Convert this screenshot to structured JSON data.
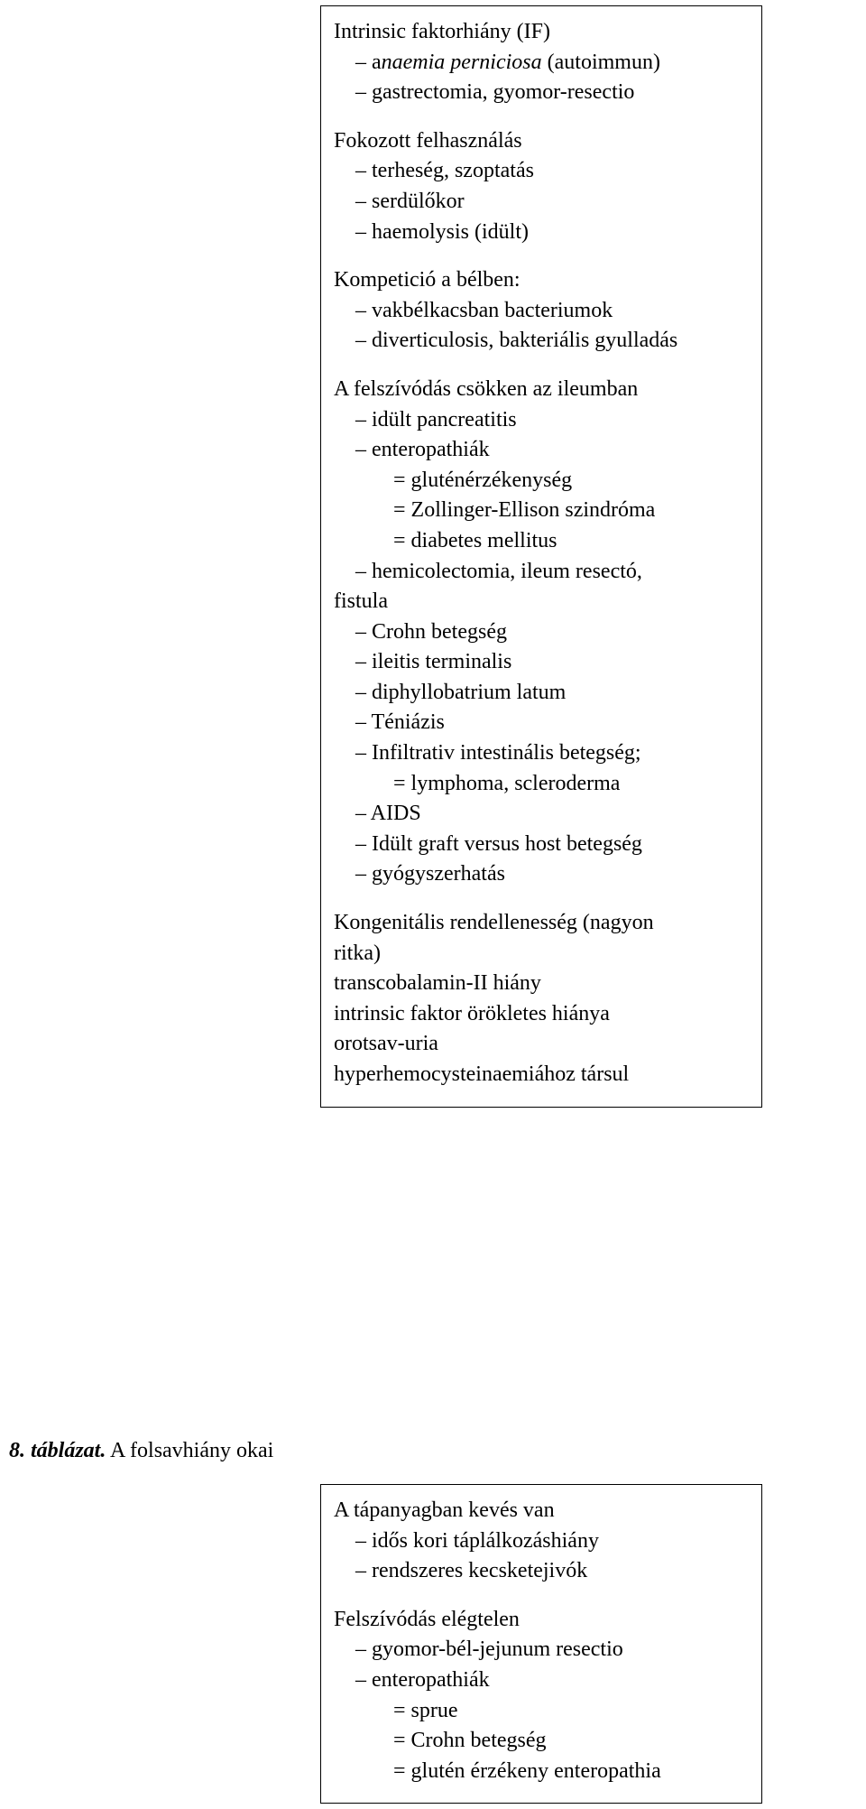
{
  "box1": {
    "s1": {
      "head": "Intrinsic faktorhiány (IF)",
      "items": [
        {
          "pre": "– a",
          "ital": "naemia perniciosa",
          "post": " (autoimmun)"
        },
        {
          "text": "– gastrectomia, gyomor-resectio"
        }
      ]
    },
    "s2": {
      "head": "Fokozott felhasználás",
      "items": [
        "– terheség, szoptatás",
        "– serdülőkor",
        "– haemolysis (idült)"
      ]
    },
    "s3": {
      "head": "Kompetició a bélben:",
      "items": [
        "– vakbélkacsban bacteriumok",
        "– diverticulosis, bakteriális gyulladás"
      ]
    },
    "s4": {
      "head": "A felszívódás csökken az ileumban",
      "items_a": [
        "– idült pancreatitis",
        "– enteropathiák"
      ],
      "eqs": [
        "= gluténérzékenység",
        "= Zollinger-Ellison szindróma",
        "= diabetes mellitus"
      ],
      "wrap1": "– hemicolectomia, ileum resectó,",
      "wrap1b": "fistula",
      "items_b": [
        "– Crohn betegség",
        "– ileitis terminalis",
        "– diphyllobatrium latum",
        "– Téniázis",
        "– Infiltrativ intestinális betegség;"
      ],
      "eq2": "= lymphoma, scleroderma",
      "items_c": [
        "– AIDS",
        "– Idült graft versus host betegség",
        "– gyógyszerhatás"
      ]
    },
    "s5": {
      "l1": "Kongenitális rendellenesség (nagyon",
      "l1b": "ritka)",
      "l2": "transcobalamin-II hiány",
      "l3": "intrinsic faktor örökletes hiánya",
      "l4": "orotsav-uria",
      "l5": "hyperhemocysteinaemiához társul"
    }
  },
  "caption": {
    "label": "8. táblázat.",
    "text": " A folsavhiány okai"
  },
  "box2": {
    "s1": {
      "head": "A tápanyagban kevés van",
      "items": [
        "– idős kori táplálkozáshiány",
        "– rendszeres kecsketejivók"
      ]
    },
    "s2": {
      "head": "Felszívódás elégtelen",
      "items": [
        "– gyomor-bél-jejunum resectio",
        "– enteropathiák"
      ],
      "eqs": [
        "= sprue",
        "= Crohn betegség",
        "= glutén érzékeny enteropathia"
      ]
    }
  }
}
